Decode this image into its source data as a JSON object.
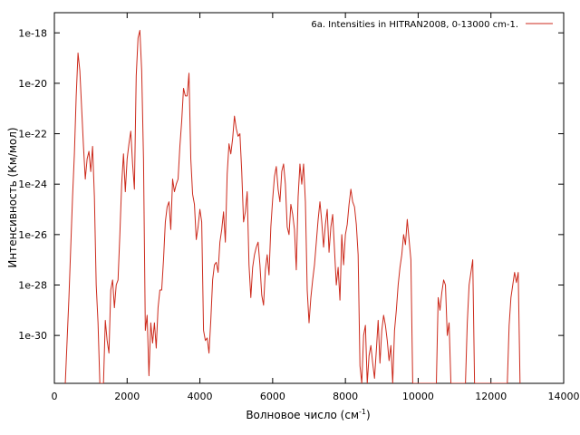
{
  "chart_data": {
    "type": "line",
    "xlabel": "Волновое число (см",
    "xlabel_sup": "-1",
    "xlabel_suffix": ")",
    "ylabel": "Интенсивность (Км/мол)",
    "y_scale": "log",
    "xlim": [
      0,
      14000
    ],
    "ylim_log10": [
      -31.9,
      -17.2
    ],
    "x_ticks": [
      {
        "value": 0,
        "label": "0"
      },
      {
        "value": 2000,
        "label": "2000"
      },
      {
        "value": 4000,
        "label": "4000"
      },
      {
        "value": 6000,
        "label": "6000"
      },
      {
        "value": 8000,
        "label": "8000"
      },
      {
        "value": 10000,
        "label": "10000"
      },
      {
        "value": 12000,
        "label": "12000"
      },
      {
        "value": 14000,
        "label": "14000"
      }
    ],
    "y_ticks": [
      {
        "log10": -18,
        "label": "1e-18"
      },
      {
        "log10": -20,
        "label": "1e-20"
      },
      {
        "log10": -22,
        "label": "1e-22"
      },
      {
        "log10": -24,
        "label": "1e-24"
      },
      {
        "log10": -26,
        "label": "1e-26"
      },
      {
        "log10": -28,
        "label": "1e-28"
      },
      {
        "log10": -30,
        "label": "1e-30"
      }
    ],
    "grid": false,
    "legend_position": "top-right",
    "series": [
      {
        "name": "6a. Intensities in HITRAN2008, 0-13000 cm-1.",
        "color": "#cc2a1c",
        "points_log10": [
          [
            300,
            -31.9
          ],
          [
            350,
            -30.2
          ],
          [
            400,
            -28.5
          ],
          [
            450,
            -26.5
          ],
          [
            500,
            -24.5
          ],
          [
            550,
            -22.8
          ],
          [
            600,
            -20.5
          ],
          [
            650,
            -18.8
          ],
          [
            700,
            -19.5
          ],
          [
            750,
            -21.0
          ],
          [
            800,
            -22.5
          ],
          [
            850,
            -23.8
          ],
          [
            900,
            -23.0
          ],
          [
            950,
            -22.7
          ],
          [
            1000,
            -23.5
          ],
          [
            1050,
            -22.5
          ],
          [
            1100,
            -24.5
          ],
          [
            1150,
            -28.0
          ],
          [
            1200,
            -29.5
          ],
          [
            1250,
            -31.9
          ],
          [
            1300,
            -31.9
          ],
          [
            1350,
            -31.9
          ],
          [
            1400,
            -29.4
          ],
          [
            1450,
            -30.2
          ],
          [
            1500,
            -30.7
          ],
          [
            1550,
            -28.2
          ],
          [
            1600,
            -27.8
          ],
          [
            1650,
            -28.9
          ],
          [
            1700,
            -28.0
          ],
          [
            1750,
            -27.8
          ],
          [
            1800,
            -26.0
          ],
          [
            1850,
            -24.0
          ],
          [
            1900,
            -22.8
          ],
          [
            1950,
            -24.3
          ],
          [
            2000,
            -23.0
          ],
          [
            2050,
            -22.4
          ],
          [
            2100,
            -21.9
          ],
          [
            2150,
            -23.2
          ],
          [
            2200,
            -24.2
          ],
          [
            2250,
            -19.7
          ],
          [
            2300,
            -18.2
          ],
          [
            2350,
            -17.9
          ],
          [
            2400,
            -19.5
          ],
          [
            2450,
            -23.0
          ],
          [
            2500,
            -29.8
          ],
          [
            2550,
            -29.2
          ],
          [
            2600,
            -31.6
          ],
          [
            2650,
            -29.5
          ],
          [
            2700,
            -30.3
          ],
          [
            2750,
            -29.5
          ],
          [
            2800,
            -30.5
          ],
          [
            2850,
            -28.9
          ],
          [
            2900,
            -28.2
          ],
          [
            2950,
            -28.2
          ],
          [
            3000,
            -27.0
          ],
          [
            3050,
            -25.5
          ],
          [
            3100,
            -24.9
          ],
          [
            3150,
            -24.7
          ],
          [
            3200,
            -25.8
          ],
          [
            3250,
            -23.8
          ],
          [
            3300,
            -24.3
          ],
          [
            3350,
            -24.0
          ],
          [
            3400,
            -23.8
          ],
          [
            3450,
            -22.5
          ],
          [
            3500,
            -21.5
          ],
          [
            3550,
            -20.2
          ],
          [
            3600,
            -20.5
          ],
          [
            3650,
            -20.5
          ],
          [
            3700,
            -19.6
          ],
          [
            3750,
            -23.0
          ],
          [
            3800,
            -24.4
          ],
          [
            3850,
            -24.8
          ],
          [
            3900,
            -26.2
          ],
          [
            3950,
            -25.7
          ],
          [
            4000,
            -25.0
          ],
          [
            4050,
            -25.5
          ],
          [
            4100,
            -29.8
          ],
          [
            4150,
            -30.2
          ],
          [
            4200,
            -30.1
          ],
          [
            4250,
            -30.7
          ],
          [
            4300,
            -29.4
          ],
          [
            4350,
            -27.8
          ],
          [
            4400,
            -27.2
          ],
          [
            4450,
            -27.1
          ],
          [
            4500,
            -27.5
          ],
          [
            4550,
            -26.3
          ],
          [
            4600,
            -25.8
          ],
          [
            4650,
            -25.1
          ],
          [
            4700,
            -26.3
          ],
          [
            4750,
            -23.6
          ],
          [
            4800,
            -22.4
          ],
          [
            4850,
            -22.8
          ],
          [
            4900,
            -22.2
          ],
          [
            4950,
            -21.3
          ],
          [
            5000,
            -21.8
          ],
          [
            5050,
            -22.1
          ],
          [
            5100,
            -22.0
          ],
          [
            5150,
            -23.5
          ],
          [
            5200,
            -25.5
          ],
          [
            5250,
            -25.1
          ],
          [
            5300,
            -24.3
          ],
          [
            5350,
            -27.2
          ],
          [
            5400,
            -28.5
          ],
          [
            5450,
            -27.3
          ],
          [
            5500,
            -26.8
          ],
          [
            5550,
            -26.5
          ],
          [
            5600,
            -26.3
          ],
          [
            5650,
            -27.2
          ],
          [
            5700,
            -28.4
          ],
          [
            5750,
            -28.8
          ],
          [
            5800,
            -27.4
          ],
          [
            5850,
            -26.8
          ],
          [
            5900,
            -27.6
          ],
          [
            5950,
            -25.7
          ],
          [
            6000,
            -24.6
          ],
          [
            6050,
            -23.7
          ],
          [
            6100,
            -23.3
          ],
          [
            6150,
            -24.2
          ],
          [
            6200,
            -24.7
          ],
          [
            6250,
            -23.5
          ],
          [
            6300,
            -23.2
          ],
          [
            6350,
            -24.0
          ],
          [
            6400,
            -25.7
          ],
          [
            6450,
            -26.0
          ],
          [
            6500,
            -24.8
          ],
          [
            6550,
            -25.2
          ],
          [
            6600,
            -25.8
          ],
          [
            6650,
            -27.4
          ],
          [
            6700,
            -24.5
          ],
          [
            6750,
            -23.2
          ],
          [
            6800,
            -24.0
          ],
          [
            6850,
            -23.2
          ],
          [
            6900,
            -24.7
          ],
          [
            6950,
            -28.2
          ],
          [
            7000,
            -29.5
          ],
          [
            7050,
            -28.5
          ],
          [
            7100,
            -27.8
          ],
          [
            7150,
            -27.2
          ],
          [
            7200,
            -26.3
          ],
          [
            7250,
            -25.4
          ],
          [
            7300,
            -24.7
          ],
          [
            7350,
            -25.5
          ],
          [
            7400,
            -26.5
          ],
          [
            7450,
            -25.6
          ],
          [
            7500,
            -25.0
          ],
          [
            7550,
            -26.7
          ],
          [
            7600,
            -25.7
          ],
          [
            7650,
            -25.2
          ],
          [
            7700,
            -26.6
          ],
          [
            7750,
            -28.0
          ],
          [
            7800,
            -27.3
          ],
          [
            7850,
            -28.6
          ],
          [
            7900,
            -26.0
          ],
          [
            7950,
            -27.2
          ],
          [
            8000,
            -26.0
          ],
          [
            8050,
            -25.6
          ],
          [
            8100,
            -24.8
          ],
          [
            8150,
            -24.2
          ],
          [
            8200,
            -24.7
          ],
          [
            8250,
            -24.9
          ],
          [
            8300,
            -25.6
          ],
          [
            8350,
            -26.8
          ],
          [
            8400,
            -31.2
          ],
          [
            8450,
            -31.9
          ],
          [
            8500,
            -30.0
          ],
          [
            8550,
            -29.6
          ],
          [
            8600,
            -31.9
          ],
          [
            8650,
            -30.8
          ],
          [
            8700,
            -30.4
          ],
          [
            8750,
            -31.1
          ],
          [
            8800,
            -31.7
          ],
          [
            8850,
            -30.6
          ],
          [
            8900,
            -29.4
          ],
          [
            8950,
            -31.1
          ],
          [
            9000,
            -29.8
          ],
          [
            9050,
            -29.2
          ],
          [
            9100,
            -29.6
          ],
          [
            9150,
            -30.2
          ],
          [
            9200,
            -31.0
          ],
          [
            9250,
            -30.4
          ],
          [
            9300,
            -31.9
          ],
          [
            9350,
            -29.8
          ],
          [
            9400,
            -29.0
          ],
          [
            9450,
            -28.0
          ],
          [
            9500,
            -27.3
          ],
          [
            9550,
            -26.8
          ],
          [
            9600,
            -26.0
          ],
          [
            9650,
            -26.4
          ],
          [
            9700,
            -25.4
          ],
          [
            9750,
            -26.2
          ],
          [
            9800,
            -27.0
          ],
          [
            9850,
            -31.9
          ],
          [
            9900,
            -31.9
          ],
          [
            10000,
            -31.9
          ],
          [
            10100,
            -31.9
          ],
          [
            10200,
            -31.9
          ],
          [
            10300,
            -31.9
          ],
          [
            10400,
            -31.9
          ],
          [
            10500,
            -31.9
          ],
          [
            10550,
            -28.5
          ],
          [
            10600,
            -29.0
          ],
          [
            10650,
            -28.3
          ],
          [
            10700,
            -27.8
          ],
          [
            10750,
            -28.0
          ],
          [
            10800,
            -30.0
          ],
          [
            10850,
            -29.5
          ],
          [
            10900,
            -31.9
          ],
          [
            10950,
            -31.9
          ],
          [
            11000,
            -31.9
          ],
          [
            11050,
            -31.9
          ],
          [
            11100,
            -31.9
          ],
          [
            11150,
            -31.9
          ],
          [
            11200,
            -31.9
          ],
          [
            11250,
            -31.9
          ],
          [
            11300,
            -31.9
          ],
          [
            11350,
            -29.5
          ],
          [
            11400,
            -28.0
          ],
          [
            11450,
            -27.5
          ],
          [
            11500,
            -27.0
          ],
          [
            11550,
            -31.9
          ],
          [
            11600,
            -31.9
          ],
          [
            11700,
            -31.9
          ],
          [
            11800,
            -31.9
          ],
          [
            11900,
            -31.9
          ],
          [
            12000,
            -31.9
          ],
          [
            12100,
            -31.9
          ],
          [
            12200,
            -31.9
          ],
          [
            12300,
            -31.9
          ],
          [
            12400,
            -31.9
          ],
          [
            12450,
            -31.9
          ],
          [
            12500,
            -29.6
          ],
          [
            12550,
            -28.5
          ],
          [
            12600,
            -28.0
          ],
          [
            12650,
            -27.5
          ],
          [
            12700,
            -27.9
          ],
          [
            12750,
            -27.5
          ],
          [
            12800,
            -31.9
          ]
        ]
      }
    ]
  }
}
